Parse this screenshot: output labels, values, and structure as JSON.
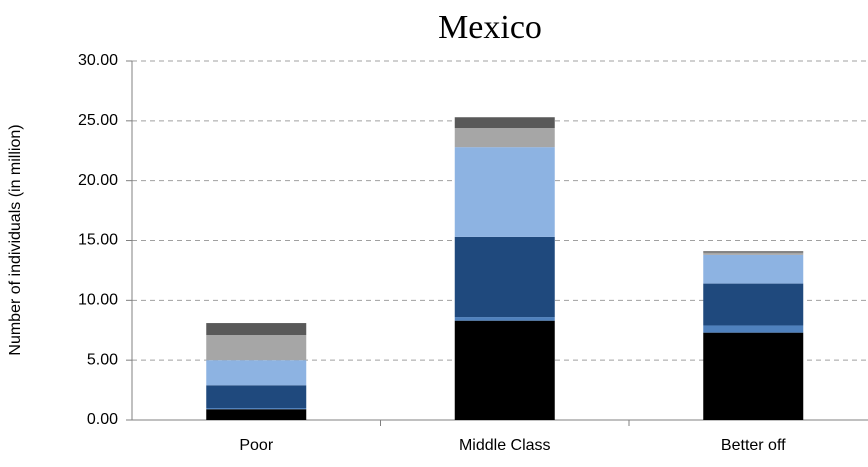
{
  "chart_data": {
    "type": "stacked_bar",
    "title": "Mexico",
    "y_label": "Number of individuals (in million)",
    "categories": [
      "Poor",
      "Middle Class",
      "Better off"
    ],
    "series": [
      {
        "color": "#000000",
        "values": [
          0.9,
          8.3,
          7.3
        ]
      },
      {
        "color": "#4f81bd",
        "values": [
          0.1,
          0.3,
          0.6
        ]
      },
      {
        "color": "#1f497d",
        "values": [
          1.9,
          6.7,
          3.5
        ]
      },
      {
        "color": "#8db3e2",
        "values": [
          2.1,
          7.5,
          2.4
        ]
      },
      {
        "color": "#a6a6a6",
        "values": [
          2.1,
          1.6,
          0.2
        ]
      },
      {
        "color": "#595959",
        "values": [
          1.0,
          0.9,
          0.1
        ]
      }
    ],
    "ylim": [
      0,
      30
    ],
    "yticks": [
      {
        "value": 0,
        "label": "0.00"
      },
      {
        "value": 5,
        "label": "5.00"
      },
      {
        "value": 10,
        "label": "10.00"
      },
      {
        "value": 15,
        "label": "15.00"
      },
      {
        "value": 20,
        "label": "20.00"
      },
      {
        "value": 25,
        "label": "25.00"
      },
      {
        "value": 30,
        "label": "30.00"
      }
    ],
    "grid": true
  }
}
